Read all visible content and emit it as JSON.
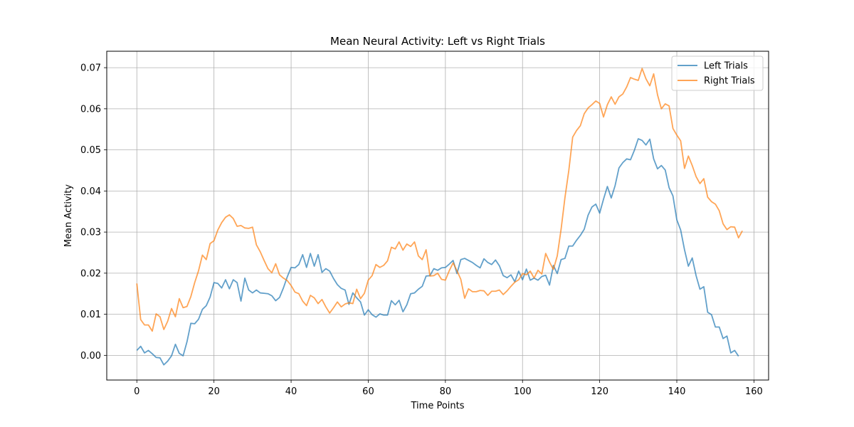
{
  "chart_data": {
    "type": "line",
    "title": "Mean Neural Activity: Left vs Right Trials",
    "xlabel": "Time Points",
    "ylabel": "Mean Activity",
    "xlim": [
      -7.8,
      163.8
    ],
    "ylim": [
      -0.006,
      0.074
    ],
    "xticks": [
      0,
      20,
      40,
      60,
      80,
      100,
      120,
      140,
      160
    ],
    "xtick_labels": [
      "0",
      "20",
      "40",
      "60",
      "80",
      "100",
      "120",
      "140",
      "160"
    ],
    "yticks": [
      0.0,
      0.01,
      0.02,
      0.03,
      0.04,
      0.05,
      0.06,
      0.07
    ],
    "ytick_labels": [
      "0.00",
      "0.01",
      "0.02",
      "0.03",
      "0.04",
      "0.05",
      "0.06",
      "0.07"
    ],
    "grid": true,
    "legend_position": "top-right",
    "series": [
      {
        "name": "Left Trials",
        "color": "#1f77b4",
        "x_start": 0,
        "values": [
          0.0012,
          0.0022,
          0.0006,
          0.0012,
          0.0004,
          -0.0005,
          -0.0006,
          -0.0023,
          -0.0014,
          -0.0001,
          0.0027,
          0.0005,
          -0.0001,
          0.0033,
          0.0078,
          0.0077,
          0.0088,
          0.0112,
          0.0121,
          0.0142,
          0.0177,
          0.0175,
          0.0164,
          0.0184,
          0.0162,
          0.0184,
          0.0177,
          0.0132,
          0.0188,
          0.0159,
          0.0152,
          0.0159,
          0.0152,
          0.0151,
          0.015,
          0.0145,
          0.0133,
          0.0141,
          0.0164,
          0.0191,
          0.0214,
          0.0213,
          0.0221,
          0.0245,
          0.0214,
          0.0248,
          0.0217,
          0.0245,
          0.0202,
          0.0211,
          0.0205,
          0.0187,
          0.0172,
          0.0163,
          0.0159,
          0.0124,
          0.0152,
          0.014,
          0.013,
          0.0098,
          0.0111,
          0.0099,
          0.0093,
          0.0101,
          0.0098,
          0.0098,
          0.0133,
          0.0123,
          0.0134,
          0.0106,
          0.0123,
          0.015,
          0.0152,
          0.0161,
          0.0168,
          0.0193,
          0.0194,
          0.0211,
          0.0207,
          0.0213,
          0.0214,
          0.0222,
          0.0231,
          0.0199,
          0.0233,
          0.0236,
          0.0231,
          0.0226,
          0.0219,
          0.0213,
          0.0235,
          0.0226,
          0.0221,
          0.0232,
          0.0218,
          0.0194,
          0.0189,
          0.0196,
          0.0179,
          0.0205,
          0.0184,
          0.021,
          0.0183,
          0.0188,
          0.0183,
          0.0192,
          0.0195,
          0.0171,
          0.0219,
          0.0199,
          0.0233,
          0.0236,
          0.0266,
          0.0266,
          0.028,
          0.0292,
          0.0307,
          0.0341,
          0.0361,
          0.0368,
          0.0346,
          0.038,
          0.0411,
          0.0383,
          0.0413,
          0.0456,
          0.0469,
          0.0478,
          0.0476,
          0.0499,
          0.0527,
          0.0523,
          0.0512,
          0.0526,
          0.0478,
          0.0454,
          0.0462,
          0.0451,
          0.0408,
          0.0388,
          0.033,
          0.0305,
          0.0257,
          0.0217,
          0.0237,
          0.0194,
          0.0161,
          0.0167,
          0.0105,
          0.0099,
          0.0069,
          0.0069,
          0.0041,
          0.0047,
          0.0006,
          0.0012,
          -0.0002
        ]
      },
      {
        "name": "Right Trials",
        "color": "#ff7f0e",
        "x_start": 0,
        "values": [
          0.0175,
          0.0087,
          0.0074,
          0.0074,
          0.0059,
          0.0101,
          0.0094,
          0.0063,
          0.0083,
          0.0114,
          0.0094,
          0.0138,
          0.0116,
          0.0119,
          0.0143,
          0.0177,
          0.0206,
          0.0244,
          0.0233,
          0.0272,
          0.0279,
          0.0305,
          0.0323,
          0.0336,
          0.0342,
          0.0333,
          0.0314,
          0.0316,
          0.031,
          0.0309,
          0.0312,
          0.0269,
          0.0252,
          0.0231,
          0.0211,
          0.0201,
          0.0223,
          0.0196,
          0.0188,
          0.0182,
          0.017,
          0.0154,
          0.015,
          0.0132,
          0.0121,
          0.0146,
          0.014,
          0.0126,
          0.0136,
          0.0118,
          0.0103,
          0.0116,
          0.013,
          0.0118,
          0.0125,
          0.0128,
          0.0126,
          0.0161,
          0.0138,
          0.0151,
          0.0183,
          0.0194,
          0.0221,
          0.0214,
          0.0219,
          0.023,
          0.0263,
          0.0259,
          0.0276,
          0.0256,
          0.0271,
          0.0265,
          0.0276,
          0.0242,
          0.0233,
          0.0257,
          0.0193,
          0.0194,
          0.02,
          0.0185,
          0.0183,
          0.0206,
          0.0225,
          0.0206,
          0.0185,
          0.0139,
          0.0162,
          0.0155,
          0.0155,
          0.0158,
          0.0157,
          0.0146,
          0.0156,
          0.0156,
          0.0159,
          0.0148,
          0.0157,
          0.0168,
          0.0178,
          0.0184,
          0.0199,
          0.0196,
          0.0205,
          0.0188,
          0.0207,
          0.0198,
          0.0248,
          0.0227,
          0.0209,
          0.0242,
          0.0307,
          0.0384,
          0.045,
          0.0531,
          0.0547,
          0.0559,
          0.0588,
          0.0602,
          0.061,
          0.0619,
          0.0613,
          0.058,
          0.061,
          0.0629,
          0.0611,
          0.0629,
          0.0636,
          0.0653,
          0.0676,
          0.0672,
          0.0669,
          0.0698,
          0.0673,
          0.0656,
          0.0685,
          0.0634,
          0.06,
          0.0612,
          0.0607,
          0.0552,
          0.0536,
          0.0522,
          0.0455,
          0.0485,
          0.0462,
          0.0435,
          0.0418,
          0.043,
          0.0385,
          0.0374,
          0.0368,
          0.0352,
          0.032,
          0.0306,
          0.0313,
          0.0312,
          0.0286,
          0.0303
        ]
      }
    ]
  }
}
